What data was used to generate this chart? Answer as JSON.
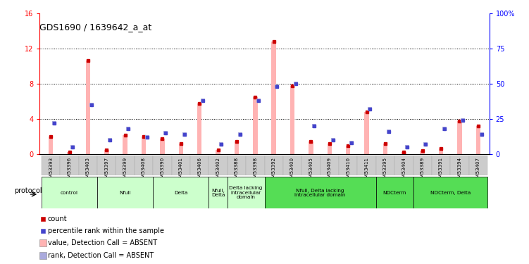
{
  "title": "GDS1690 / 1639642_a_at",
  "samples": [
    "GSM53393",
    "GSM53396",
    "GSM53403",
    "GSM53397",
    "GSM53399",
    "GSM53408",
    "GSM53390",
    "GSM53401",
    "GSM53406",
    "GSM53402",
    "GSM53388",
    "GSM53398",
    "GSM53392",
    "GSM53400",
    "GSM53405",
    "GSM53409",
    "GSM53410",
    "GSM53411",
    "GSM53395",
    "GSM53404",
    "GSM53389",
    "GSM53391",
    "GSM53394",
    "GSM53407"
  ],
  "values_absent": [
    2.0,
    0.3,
    10.6,
    0.5,
    2.2,
    2.0,
    1.8,
    1.2,
    5.8,
    0.5,
    1.5,
    6.5,
    12.8,
    7.8,
    1.5,
    1.2,
    1.0,
    4.8,
    1.2,
    0.3,
    0.4,
    0.7,
    3.8,
    3.2
  ],
  "rank_absent": [
    22,
    5,
    35,
    10,
    18,
    12,
    15,
    14,
    38,
    7,
    14,
    38,
    48,
    50,
    20,
    10,
    8,
    32,
    16,
    5,
    7,
    18,
    24,
    14
  ],
  "count_values": [
    2.0,
    0.3,
    10.6,
    0.5,
    2.2,
    2.0,
    1.8,
    1.2,
    5.8,
    0.5,
    1.5,
    6.5,
    12.8,
    7.8,
    1.5,
    1.2,
    1.0,
    4.8,
    1.2,
    0.3,
    0.4,
    0.7,
    3.8,
    3.2
  ],
  "percentile_rank": [
    22,
    5,
    35,
    10,
    18,
    12,
    15,
    14,
    38,
    7,
    14,
    38,
    48,
    50,
    20,
    10,
    8,
    32,
    16,
    5,
    7,
    18,
    24,
    14
  ],
  "groups": [
    {
      "label": "control",
      "start": 0,
      "end": 2,
      "dark": false
    },
    {
      "label": "Nfull",
      "start": 3,
      "end": 5,
      "dark": false
    },
    {
      "label": "Delta",
      "start": 6,
      "end": 8,
      "dark": false
    },
    {
      "label": "Nfull,\nDelta",
      "start": 9,
      "end": 9,
      "dark": false
    },
    {
      "label": "Delta lacking\nintracellular\ndomain",
      "start": 10,
      "end": 11,
      "dark": false
    },
    {
      "label": "Nfull, Delta lacking\nintracellular domain",
      "start": 12,
      "end": 17,
      "dark": true
    },
    {
      "label": "NDCterm",
      "start": 18,
      "end": 19,
      "dark": true
    },
    {
      "label": "NDCterm, Delta",
      "start": 20,
      "end": 23,
      "dark": true
    }
  ],
  "ylim_left": [
    0,
    16
  ],
  "ylim_right": [
    0,
    100
  ],
  "yticks_left": [
    0,
    4,
    8,
    12,
    16
  ],
  "yticks_right": [
    0,
    25,
    50,
    75,
    100
  ],
  "bar_color_value": "#ffb3b3",
  "bar_color_rank": "#aaaadd",
  "dot_color_count": "#cc0000",
  "dot_color_percentile": "#4444cc",
  "light_green": "#ccffcc",
  "dark_green": "#55dd55",
  "gray_sample_bg": "#cccccc"
}
